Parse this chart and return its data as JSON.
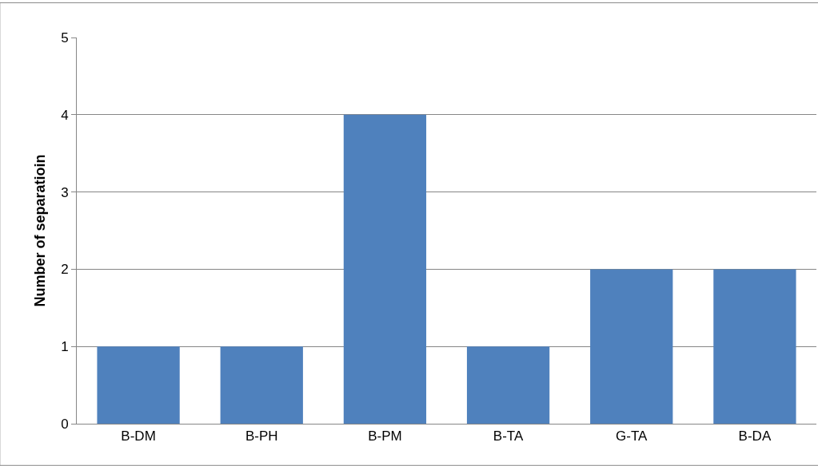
{
  "chart_data": {
    "type": "bar",
    "ylabel": "Number of separatioin",
    "categories": [
      "B-DM",
      "B-PH",
      "B-PM",
      "B-TA",
      "G-TA",
      "B-DA"
    ],
    "values": [
      1,
      1,
      4,
      1,
      2,
      2
    ],
    "color": "#4f81bd",
    "ylim": [
      0,
      5
    ],
    "yticks": [
      0,
      1,
      2,
      3,
      4,
      5
    ],
    "grid": "y"
  }
}
